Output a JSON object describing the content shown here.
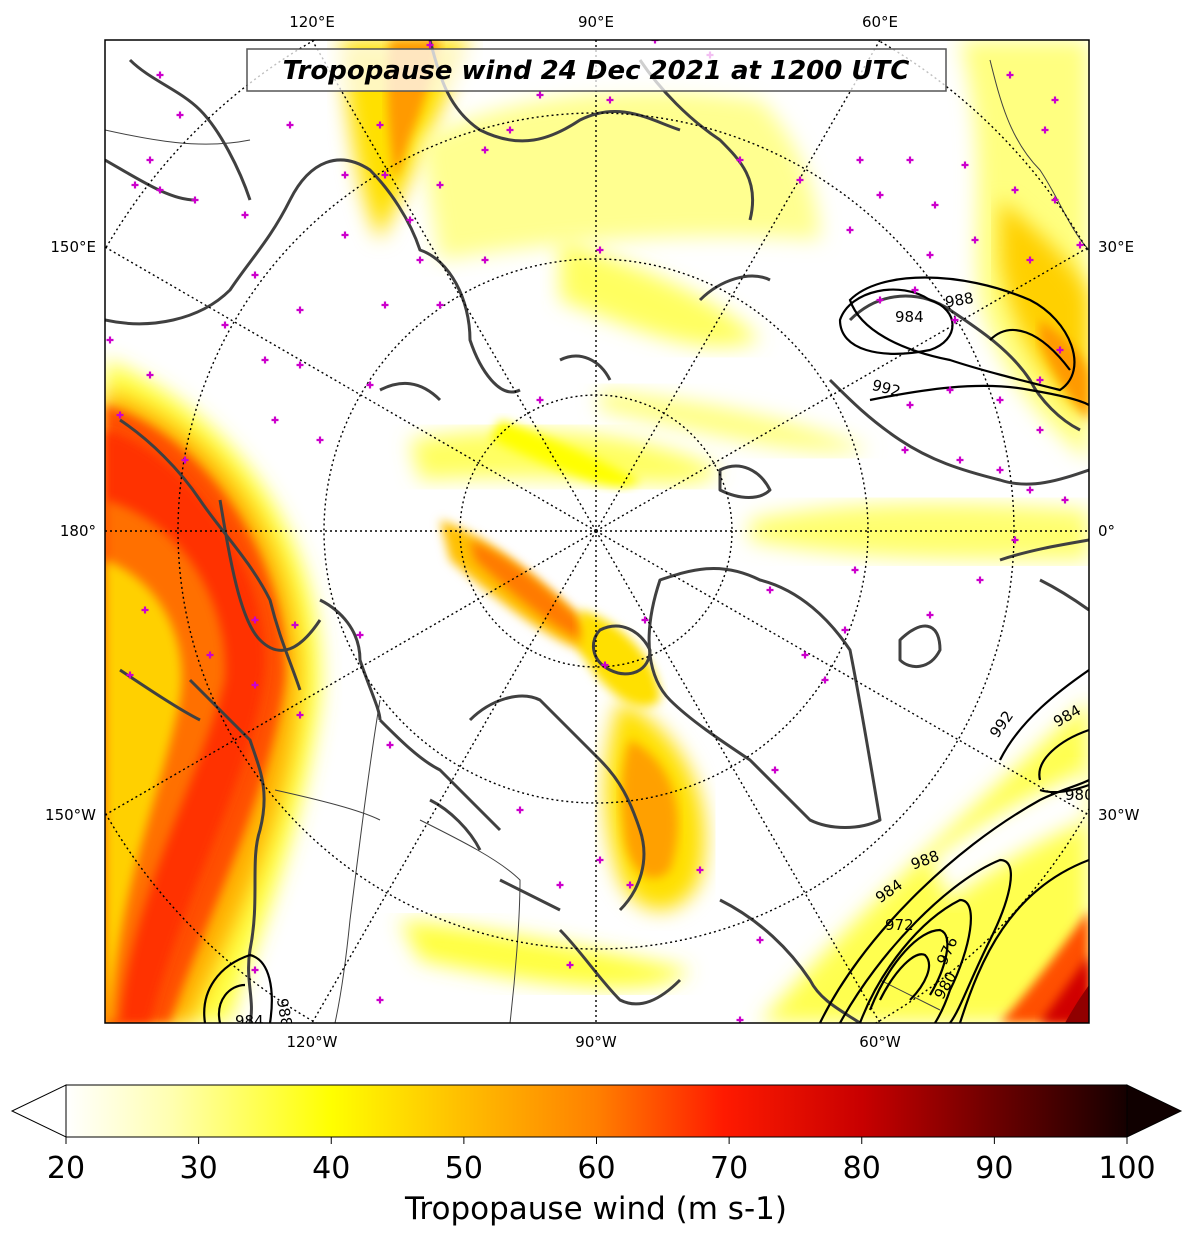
{
  "title": "Tropopause wind 24 Dec 2021 at 1200 UTC",
  "colorbar": {
    "label": "Tropopause wind (m s-1)",
    "ticks": [
      "20",
      "30",
      "40",
      "50",
      "60",
      "70",
      "80",
      "90",
      "100"
    ],
    "min": 20,
    "max": 100,
    "extend": "both",
    "colormap": [
      "#ffffff",
      "#ffffa0",
      "#ffff00",
      "#ffd000",
      "#ff9a00",
      "#ff5a00",
      "#ff1a00",
      "#d80000",
      "#a00000",
      "#600000",
      "#200000"
    ]
  },
  "longitude_labels": {
    "top": [
      "120°E",
      "90°E",
      "60°E"
    ],
    "bottom": [
      "120°W",
      "90°W",
      "60°W"
    ],
    "left": [
      "150°E",
      "180°",
      "150°W"
    ],
    "right": [
      "30°E",
      "0°",
      "30°W"
    ]
  },
  "pressure_contours": {
    "units": "hPa",
    "labels": [
      "988",
      "984",
      "992",
      "992",
      "984",
      "980",
      "988",
      "984",
      "972",
      "976",
      "980",
      "984",
      "988"
    ]
  },
  "station_marker_color": "#cc00cc",
  "coastline_color": "#404040"
}
